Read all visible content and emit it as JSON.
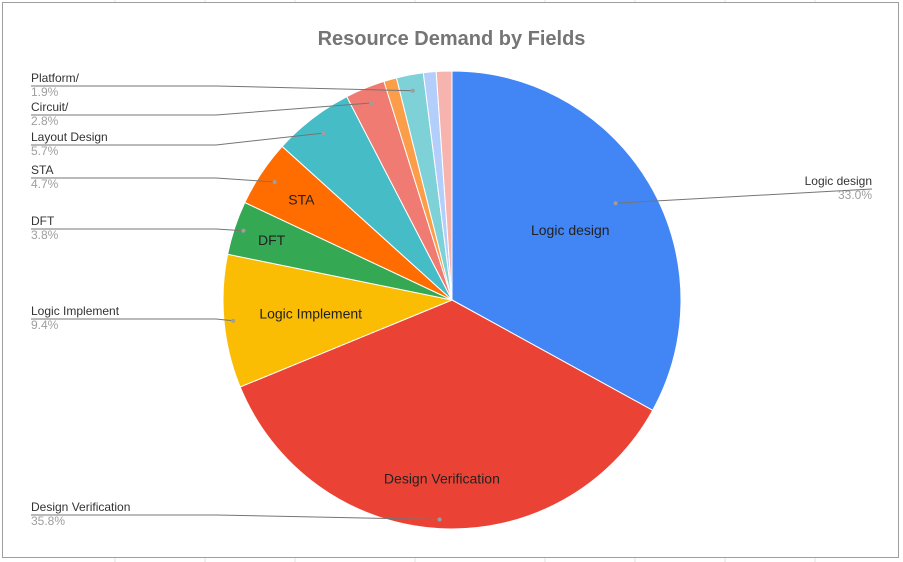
{
  "chart_data": {
    "type": "pie",
    "title": "Resource Demand by Fields",
    "slices": [
      {
        "label": "Logic design",
        "value": 33.0,
        "percent_label": "33.0%",
        "inner_label": "Logic design",
        "color": "#4285f4"
      },
      {
        "label": "Design Verification",
        "value": 35.8,
        "percent_label": "35.8%",
        "inner_label": "Design Verification",
        "color": "#ea4335"
      },
      {
        "label": "Logic Implement",
        "value": 9.4,
        "percent_label": "9.4%",
        "inner_label": "Logic Implement",
        "color": "#fbbc04"
      },
      {
        "label": "DFT",
        "value": 3.8,
        "percent_label": "3.8%",
        "inner_label": "DFT",
        "color": "#34a853"
      },
      {
        "label": "STA",
        "value": 4.7,
        "percent_label": "4.7%",
        "inner_label": "STA",
        "color": "#ff6d01"
      },
      {
        "label": "Layout Design",
        "value": 5.7,
        "percent_label": "5.7%",
        "inner_label": "",
        "color": "#46bdc6"
      },
      {
        "label": "Circuit/",
        "value": 2.8,
        "percent_label": "2.8%",
        "inner_label": "",
        "color": "#f07b72"
      },
      {
        "label": "",
        "value": 0.9,
        "percent_label": "",
        "inner_label": "",
        "color": "#fc9d49"
      },
      {
        "label": "Platform/",
        "value": 1.9,
        "percent_label": "1.9%",
        "inner_label": "",
        "color": "#7ed1d7"
      },
      {
        "label": "",
        "value": 0.9,
        "percent_label": "",
        "inner_label": "",
        "color": "#b3cefb"
      },
      {
        "label": "",
        "value": 1.1,
        "percent_label": "",
        "inner_label": "",
        "color": "#f7b4ae"
      }
    ]
  }
}
